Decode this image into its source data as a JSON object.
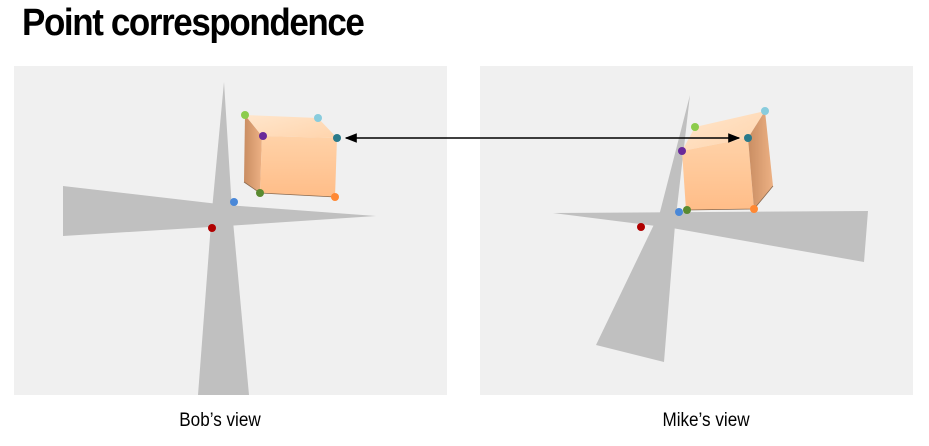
{
  "title": "Point correspondence",
  "views": {
    "left_caption": "Bob’s view",
    "right_caption": "Mike’s view"
  },
  "colors": {
    "panel_bg": "#f0f0f0",
    "shadow": "#c0c0c0",
    "cube_front": "#ffc89a",
    "cube_side": "#e8a878",
    "cube_top": "#ffdcbc",
    "point_red": "#b00000",
    "point_blue": "#4a88d8",
    "point_green_light": "#8ccc4c",
    "point_green_dark": "#5a8a30",
    "point_purple": "#6a2a9a",
    "point_teal": "#2a7a8a",
    "point_light_blue": "#88ccdd",
    "point_orange": "#ff8833",
    "arrow": "#000000"
  }
}
